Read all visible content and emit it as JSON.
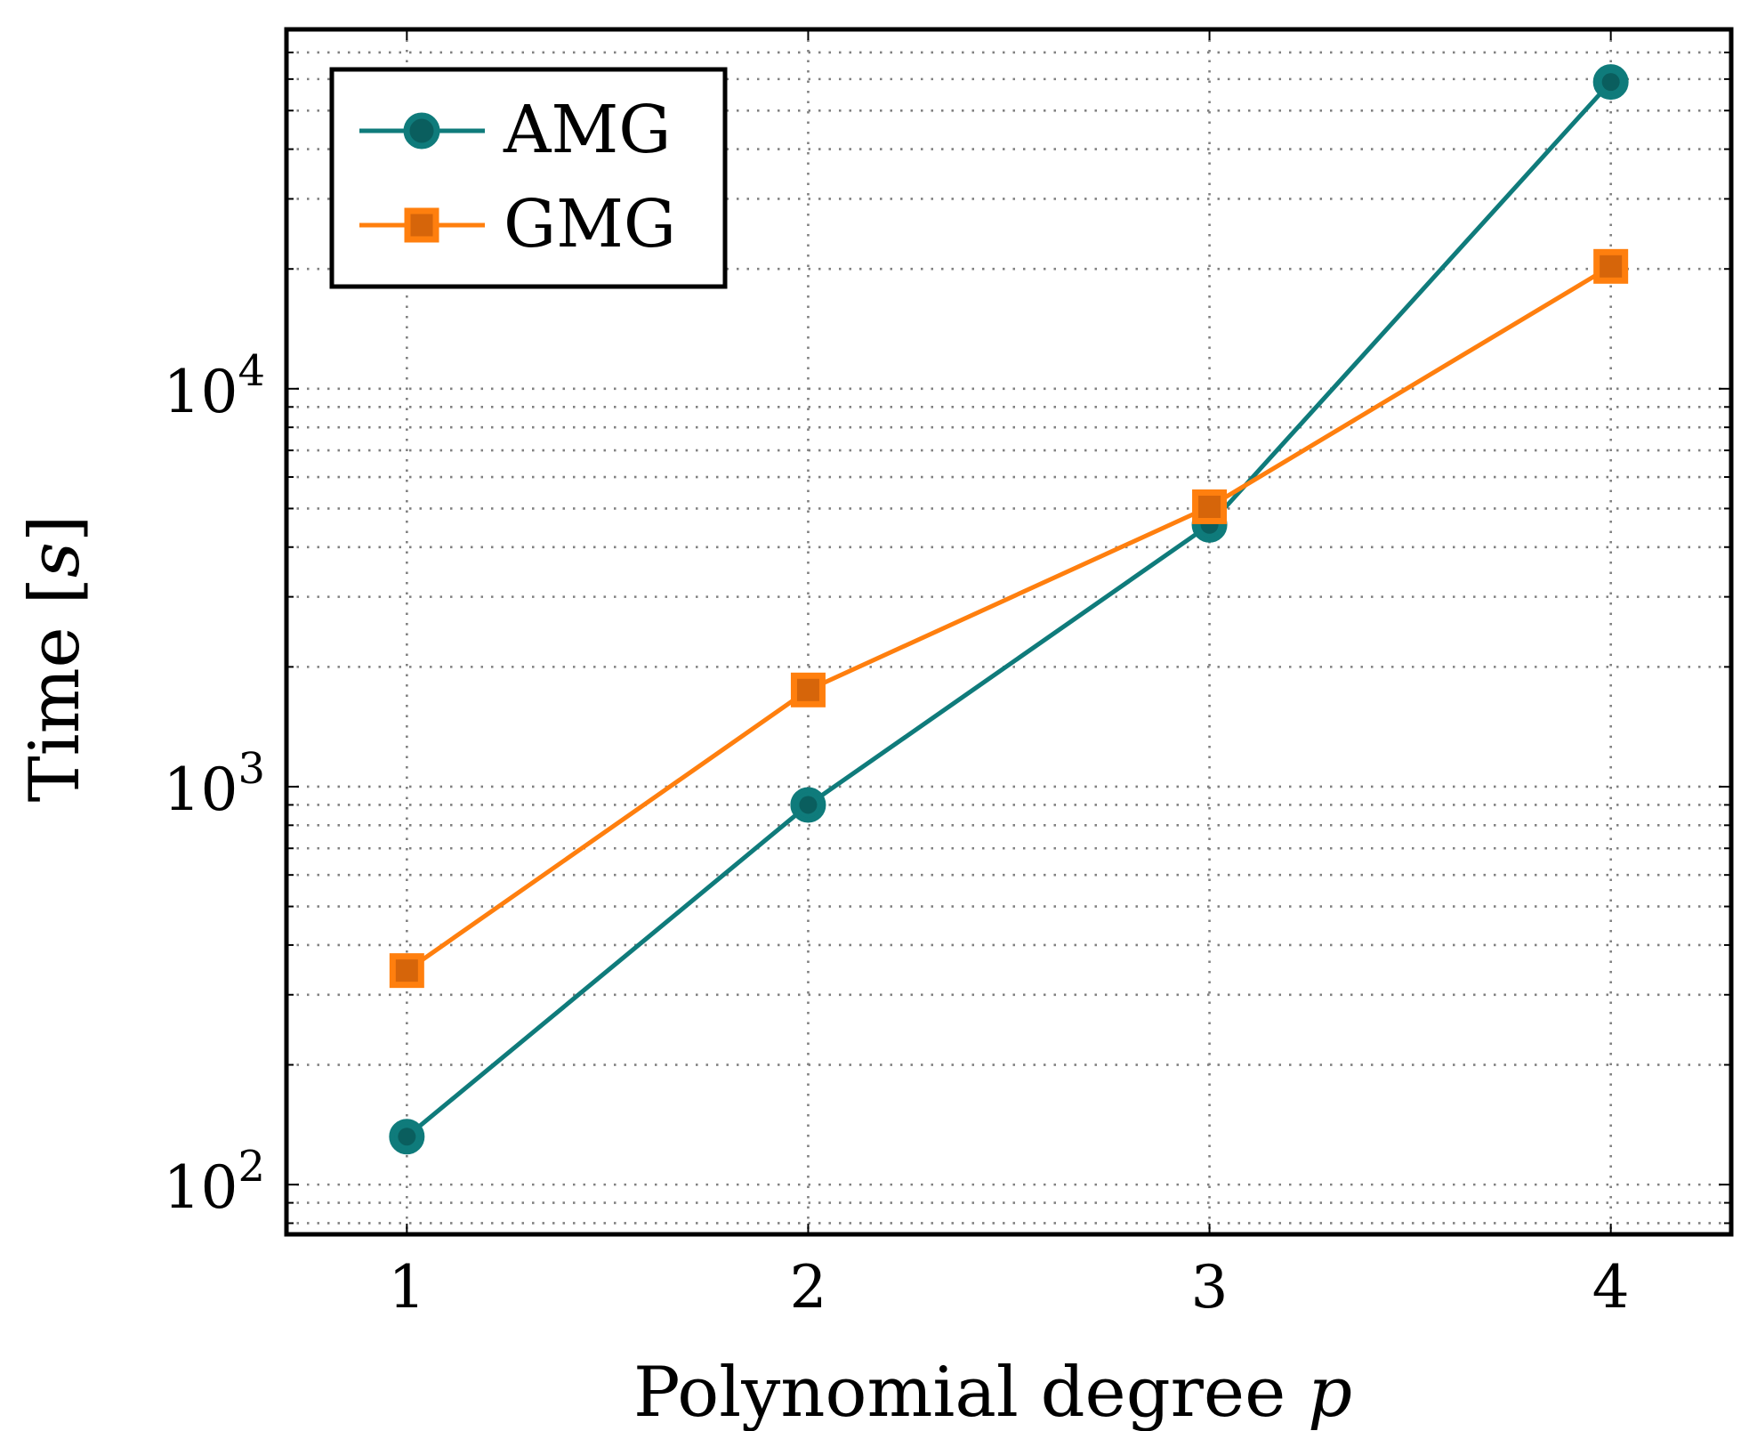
{
  "chart_data": {
    "type": "line",
    "xlabel": "Polynomial degree",
    "xlabel_var": "p",
    "ylabel": "Time",
    "ylabel_unit": "s",
    "yscale": "log",
    "xlim": [
      0.7,
      4.3
    ],
    "ylim": [
      75,
      80000
    ],
    "grid": true,
    "legend_position": "top-left",
    "x_ticks": [
      1,
      2,
      3,
      4
    ],
    "y_ticks": [
      {
        "base": "10",
        "exp": "2",
        "value": 100
      },
      {
        "base": "10",
        "exp": "3",
        "value": 1000
      },
      {
        "base": "10",
        "exp": "4",
        "value": 10000
      }
    ],
    "x": [
      1,
      2,
      3,
      4
    ],
    "series": [
      {
        "name": "AMG",
        "color": "#0f7b7b",
        "marker": "circle",
        "values": [
          132,
          900,
          4550,
          59000
        ]
      },
      {
        "name": "GMG",
        "color": "#ff7f0e",
        "marker": "square",
        "marker_fill": "#d6650a",
        "values": [
          345,
          1750,
          5050,
          20300
        ]
      }
    ]
  }
}
